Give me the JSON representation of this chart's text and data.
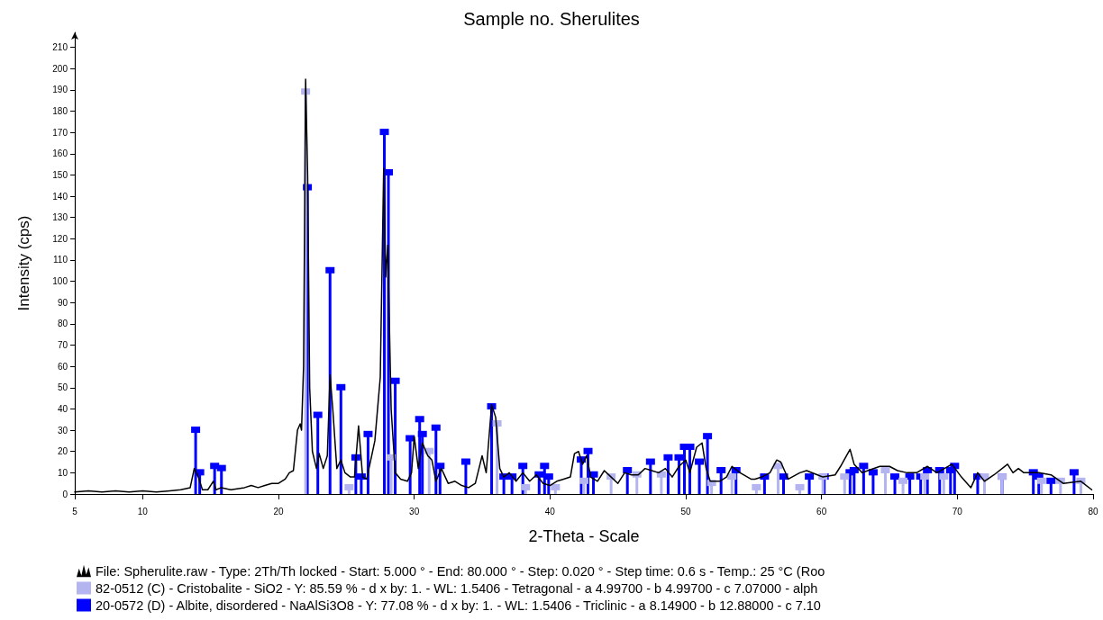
{
  "chart_data": {
    "type": "line",
    "title": "Sample no. Sherulites",
    "xlabel": "2-Theta - Scale",
    "ylabel": "Intensity (cps)",
    "xlim": [
      5,
      80
    ],
    "xticks": [
      5,
      10,
      20,
      30,
      40,
      50,
      60,
      70,
      80
    ],
    "ylim": [
      0,
      217
    ],
    "yticks": [
      0,
      10,
      20,
      30,
      40,
      50,
      60,
      70,
      80,
      90,
      100,
      110,
      120,
      130,
      140,
      150,
      160,
      170,
      180,
      190,
      200,
      210
    ],
    "grid": false,
    "legend": "bottom",
    "series": [
      {
        "name": "File: Spherulite.raw - Type: 2Th/Th locked - Start: 5.000 ° - End: 80.000 ° - Step: 0.020 ° - Step time: 0.6 s - Temp.: 25 °C (Roo",
        "color": "#000000",
        "marker": "none",
        "line_style": "solid",
        "x": [
          5,
          6,
          7,
          8,
          9,
          10,
          11,
          12,
          12.8,
          13.5,
          13.8,
          14.1,
          14.4,
          14.8,
          15.2,
          15.4,
          15.8,
          16.5,
          17.5,
          18,
          18.5,
          19,
          19.5,
          20,
          20.5,
          20.8,
          21.1,
          21.4,
          21.6,
          21.7,
          21.85,
          22.0,
          22.15,
          22.3,
          22.5,
          22.8,
          23.0,
          23.3,
          23.6,
          23.8,
          24.0,
          24.3,
          24.6,
          24.9,
          25.3,
          25.6,
          25.9,
          26.2,
          26.5,
          26.8,
          27.1,
          27.3,
          27.5,
          27.75,
          27.9,
          28.05,
          28.3,
          28.6,
          29,
          29.5,
          29.8,
          30.0,
          30.3,
          30.6,
          31,
          31.3,
          31.6,
          32,
          32.5,
          33,
          33.5,
          34,
          34.5,
          35,
          35.3,
          35.7,
          36,
          36.3,
          36.6,
          37,
          37.5,
          38,
          38.5,
          39,
          39.5,
          40,
          40.5,
          41,
          41.5,
          41.8,
          42.1,
          42.4,
          42.7,
          43,
          43.5,
          44,
          44.5,
          45,
          45.5,
          46,
          46.5,
          47,
          47.5,
          48,
          48.5,
          49,
          49.5,
          50,
          50.3,
          50.8,
          51.2,
          51.5,
          51.8,
          52.5,
          53,
          53.4,
          54,
          54.8,
          55.1,
          55.6,
          56.2,
          56.7,
          57.0,
          57.55,
          58.4,
          58.9,
          59.7,
          60.1,
          61.0,
          61.4,
          62.1,
          62.4,
          63.0,
          63.4,
          64.3,
          65.0,
          65.6,
          66.3,
          67.0,
          67.8,
          68.5,
          69.6,
          70.3,
          71.0,
          71.5,
          72.0,
          72.7,
          73.7,
          74.1,
          74.5,
          74.9,
          76.0,
          76.9,
          77.8,
          79.1,
          79.9
        ],
        "values": [
          1,
          1.5,
          1,
          1.5,
          1,
          1.5,
          1,
          1.5,
          2,
          3,
          12,
          8,
          2,
          2,
          6,
          2,
          3,
          2,
          3,
          4,
          3,
          4,
          5,
          5,
          7,
          10,
          11,
          30,
          33,
          30,
          60,
          195,
          150,
          50,
          20,
          12,
          19,
          12,
          18,
          56,
          40,
          12,
          16,
          10,
          8,
          8,
          32,
          8,
          7,
          16,
          25,
          40,
          55,
          153,
          102,
          117,
          40,
          10,
          7,
          6,
          10,
          27,
          12,
          24,
          18,
          16,
          6,
          12,
          5,
          6,
          4,
          3,
          5,
          18,
          10,
          42,
          36,
          12,
          8,
          10,
          6,
          10,
          6,
          9,
          5,
          4,
          6,
          7,
          8,
          19,
          20,
          14,
          18,
          8,
          6,
          11,
          8,
          5,
          10,
          9,
          9,
          12,
          11,
          10,
          12,
          8,
          13,
          16,
          10,
          22,
          24,
          12,
          6,
          6,
          8,
          13,
          10,
          7,
          7,
          8,
          10,
          16,
          15,
          7,
          10,
          11,
          9,
          8,
          9,
          13,
          21,
          14,
          10,
          11,
          13,
          13,
          11,
          10,
          10,
          13,
          10,
          14,
          8,
          3,
          10,
          6,
          9,
          14,
          10,
          12,
          10,
          10,
          9,
          5,
          6,
          2
        ]
      },
      {
        "name": "82-0512 (C) - Cristobalite - SiO2 - Y: 85.59 % - d x by: 1. - WL: 1.5406 - Tetragonal - a 4.99700 - b 4.99700 - c 7.07000 - alph",
        "type": "lollipop",
        "color": "#b4b4f0",
        "marker": "square",
        "x": [
          22.0,
          25.2,
          28.3,
          31.1,
          36.1,
          38.2,
          40.4,
          42.5,
          44.5,
          46.4,
          48.2,
          51.9,
          53.4,
          55.2,
          56.8,
          58.4,
          60.1,
          61.7,
          64.7,
          66.0,
          67.6,
          69.0,
          72.0,
          73.3,
          76.2,
          77.6,
          79.1
        ],
        "values": [
          189,
          3,
          17,
          20,
          33,
          3,
          3,
          6,
          8,
          9,
          9,
          5,
          8,
          3,
          13,
          3,
          8,
          8,
          11,
          6,
          8,
          8,
          8,
          8,
          6,
          6,
          6
        ]
      },
      {
        "name": "20-0572 (D) - Albite, disordered - NaAlSi3O8 - Y: 77.08 % - d x by: 1. - WL: 1.5406 - Triclinic - a 8.14900 - b 12.88000 - c 7.10",
        "type": "lollipop",
        "color": "#0000ff",
        "marker": "square",
        "x": [
          13.9,
          14.2,
          15.3,
          15.8,
          22.13,
          22.9,
          23.8,
          24.6,
          25.7,
          26.1,
          26.6,
          27.8,
          28.1,
          28.6,
          29.7,
          30.4,
          30.6,
          31.6,
          31.9,
          33.8,
          35.7,
          36.6,
          37.2,
          38.0,
          39.2,
          39.6,
          39.9,
          42.3,
          42.8,
          43.2,
          45.7,
          47.4,
          48.7,
          49.5,
          49.9,
          50.3,
          51.0,
          51.6,
          52.6,
          53.7,
          55.8,
          57.2,
          59.1,
          60.2,
          62.1,
          62.4,
          63.1,
          63.8,
          65.4,
          66.5,
          67.3,
          67.8,
          68.7,
          69.5,
          69.8,
          71.5,
          73.3,
          75.6,
          76.0,
          76.9,
          78.6
        ],
        "values": [
          30,
          10,
          13,
          12,
          144,
          37,
          105,
          50,
          17,
          8,
          28,
          170,
          151,
          53,
          26,
          35,
          28,
          31,
          13,
          15,
          41,
          8,
          8,
          13,
          9,
          13,
          8,
          16,
          20,
          9,
          11,
          15,
          17,
          17,
          22,
          22,
          15,
          27,
          11,
          11,
          8,
          8,
          8,
          8,
          10,
          11,
          13,
          10,
          8,
          8,
          8,
          11,
          11,
          11,
          13,
          8,
          8,
          10,
          8,
          6,
          10
        ]
      }
    ]
  }
}
